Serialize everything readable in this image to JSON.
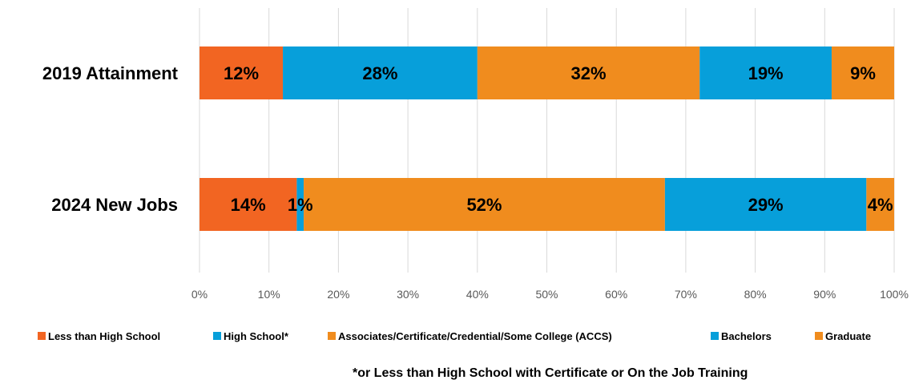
{
  "chart_data": {
    "type": "bar",
    "orientation": "horizontal",
    "stacked": true,
    "title": "",
    "xlabel": "",
    "ylabel": "",
    "xlim": [
      0,
      100
    ],
    "x_ticks": [
      "0%",
      "10%",
      "20%",
      "30%",
      "40%",
      "50%",
      "60%",
      "70%",
      "80%",
      "90%",
      "100%"
    ],
    "grid": "vertical",
    "legend_position": "bottom",
    "categories": [
      "2019 Attainment",
      "2024 New Jobs"
    ],
    "series": [
      {
        "name": "Less than High School",
        "values": [
          12,
          14
        ],
        "labels": [
          "12%",
          "14%"
        ],
        "color": "#f26522"
      },
      {
        "name": "High School*",
        "values": [
          28,
          1
        ],
        "labels": [
          "28%",
          "1%"
        ],
        "color": "#079fda"
      },
      {
        "name": "Associates/Certificate/Credential/Some College (ACCS)",
        "values": [
          32,
          52
        ],
        "labels": [
          "32%",
          "52%"
        ],
        "color": "#f08c1e"
      },
      {
        "name": "Bachelors",
        "values": [
          19,
          29
        ],
        "labels": [
          "19%",
          "29%"
        ],
        "color": "#079fda"
      },
      {
        "name": "Graduate",
        "values": [
          9,
          4
        ],
        "labels": [
          "9%",
          "4%"
        ],
        "color": "#f08c1e"
      }
    ],
    "footnote": "*or Less than High School with Certificate or On the Job Training"
  }
}
